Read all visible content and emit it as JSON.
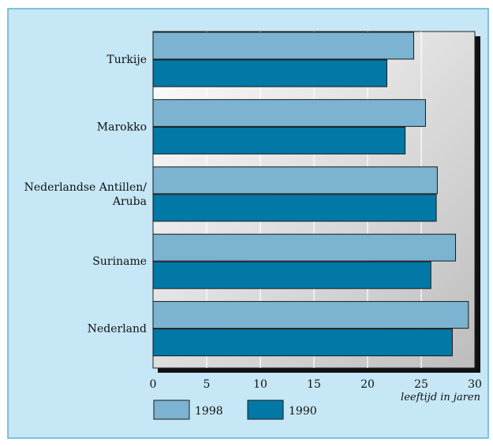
{
  "chart_data": {
    "type": "bar",
    "orientation": "horizontal",
    "categories": [
      "Turkije",
      "Marokko",
      "Nederlandse Antillen/ Aruba",
      "Suriname",
      "Nederland"
    ],
    "category_lines": [
      [
        "Turkije"
      ],
      [
        "Marokko"
      ],
      [
        "Nederlandse Antillen/",
        "Aruba"
      ],
      [
        "Suriname"
      ],
      [
        "Nederland"
      ]
    ],
    "series": [
      {
        "name": "1998",
        "values": [
          24.3,
          25.4,
          26.5,
          28.2,
          29.4
        ],
        "color": "#7bb3d1"
      },
      {
        "name": "1990",
        "values": [
          21.8,
          23.5,
          26.4,
          25.9,
          27.9
        ],
        "color": "#0278a6"
      }
    ],
    "xlim": [
      0,
      30
    ],
    "xticks": [
      0,
      5,
      10,
      15,
      20,
      25,
      30
    ],
    "xlabel": "leeftijd in jaren",
    "grid": true,
    "legend_position": "bottom-left",
    "colors": {
      "frame_bg": "#c6e7f6",
      "frame_border": "#5fb1d8",
      "plot_gradient_left": "#ffffff",
      "plot_gradient_right": "#bdbdbd",
      "shadow": "#111111"
    }
  }
}
